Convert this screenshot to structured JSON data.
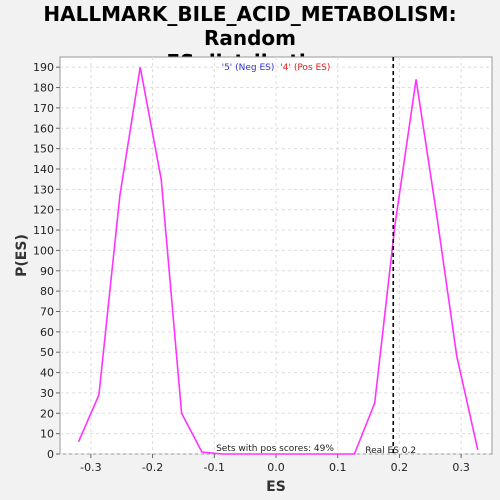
{
  "chart_data": {
    "type": "line",
    "title_line1": "HALLMARK_BILE_ACID_METABOLISM: Random",
    "title_line2": "ES distribution",
    "xlabel": "ES",
    "ylabel": "P(ES)",
    "xlim": [
      -0.35,
      0.35
    ],
    "ylim": [
      0,
      195
    ],
    "xticks": [
      -0.3,
      -0.2,
      -0.1,
      0.0,
      0.1,
      0.2,
      0.3
    ],
    "xtick_labels": [
      "-0.3",
      "-0.2",
      "-0.1",
      "0.0",
      "0.1",
      "0.2",
      "0.3"
    ],
    "yticks": [
      0,
      10,
      20,
      30,
      40,
      50,
      60,
      70,
      80,
      90,
      100,
      110,
      120,
      130,
      140,
      150,
      160,
      170,
      180,
      190
    ],
    "grid": true,
    "series": [
      {
        "color": "#ff33ff",
        "x": [
          -0.32,
          -0.287,
          -0.253,
          -0.22,
          -0.186,
          -0.153,
          -0.12,
          -0.087,
          -0.053,
          -0.02,
          0.013,
          0.047,
          0.08,
          0.113,
          0.127,
          0.16,
          0.193,
          0.227,
          0.26,
          0.293,
          0.327
        ],
        "y": [
          6,
          29,
          127,
          190,
          135,
          20,
          1,
          0,
          0,
          0,
          0,
          0,
          0,
          0,
          0,
          25,
          113,
          184,
          118,
          48,
          2
        ]
      }
    ],
    "legend": {
      "neg_label": "'5' (Neg ES)",
      "neg_color": "#3333cc",
      "pos_label": "'4' (Pos ES)",
      "pos_color": "#dd2222"
    },
    "real_es": {
      "value": 0.19,
      "label": "Real ES 0.2"
    },
    "note": "Sets with pos scores: 49%"
  }
}
